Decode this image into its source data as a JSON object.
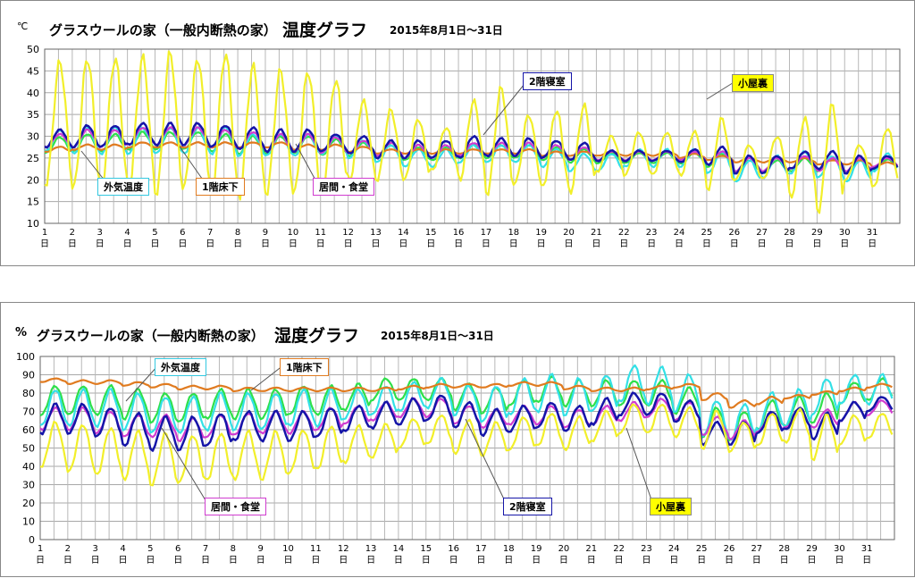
{
  "chart_data": [
    {
      "type": "line",
      "title": "グラスウールの家（一般内断熱の家）",
      "title_big": "温度グラフ",
      "subtitle": "2015年8月1日～31日",
      "unit": "℃",
      "ylim": [
        10,
        50
      ],
      "yticks": [
        10,
        15,
        20,
        25,
        30,
        35,
        40,
        45,
        50
      ],
      "xlim": [
        1,
        32
      ],
      "xticks": [
        "1",
        "2",
        "3",
        "4",
        "5",
        "6",
        "7",
        "8",
        "9",
        "10",
        "11",
        "12",
        "13",
        "14",
        "15",
        "16",
        "17",
        "18",
        "19",
        "20",
        "21",
        "22",
        "23",
        "24",
        "25",
        "26",
        "27",
        "28",
        "29",
        "30",
        "31"
      ],
      "xtick_suffix": "日",
      "grid": true,
      "series": [
        {
          "name": "外気温度",
          "color": "#33e0e6",
          "mean": [
            29,
            29,
            29,
            29,
            29,
            29,
            29,
            28,
            28,
            28,
            28,
            27,
            26,
            25,
            25,
            26,
            26,
            26,
            25,
            24,
            24,
            25,
            25,
            25,
            24,
            22,
            23,
            24,
            23,
            22,
            24
          ],
          "amp": [
            2.5,
            3,
            3,
            3,
            3,
            3,
            3,
            2.5,
            2.5,
            2.5,
            2,
            2,
            2,
            2,
            2,
            2,
            2,
            2,
            2,
            2,
            2,
            2,
            2,
            2,
            2.5,
            2.5,
            2.5,
            2.5,
            2.5,
            2.5,
            2
          ]
        },
        {
          "name": "1階床下",
          "color": "#e07b20",
          "mean": [
            27,
            27.5,
            27.5,
            28,
            28,
            28,
            28,
            28,
            28,
            27.5,
            27.5,
            27,
            26.5,
            26.5,
            26.5,
            26.5,
            26.5,
            26.5,
            26,
            26,
            26,
            26,
            26,
            25.5,
            25,
            24.5,
            24.5,
            24.5,
            24,
            24,
            23.5
          ],
          "amp": [
            0.6,
            0.6,
            0.6,
            0.6,
            0.6,
            0.6,
            0.6,
            0.6,
            0.6,
            0.6,
            0.6,
            0.6,
            0.5,
            0.5,
            0.5,
            0.5,
            0.5,
            0.5,
            0.5,
            0.5,
            0.5,
            0.5,
            0.5,
            0.5,
            0.5,
            0.5,
            0.5,
            0.5,
            0.5,
            0.5,
            0.5
          ]
        },
        {
          "name": "居間・食堂",
          "color": "#d03cd0",
          "mean": [
            29,
            29.5,
            29.5,
            30,
            30,
            30,
            29.5,
            29,
            28.5,
            28.5,
            28,
            27.5,
            27,
            26.5,
            26.5,
            27,
            27,
            27,
            26.5,
            26,
            25.5,
            25.5,
            25.5,
            25.5,
            25,
            23.5,
            23.5,
            24,
            23.5,
            23.5,
            24
          ],
          "amp": [
            1.5,
            2,
            2,
            2,
            2,
            2,
            2,
            2,
            2,
            2,
            1.8,
            1.5,
            1.5,
            1.5,
            1.5,
            1.5,
            1.5,
            1.5,
            1.5,
            1.5,
            1,
            1,
            1,
            1,
            1.5,
            1.5,
            1.5,
            1.5,
            1.5,
            1.5,
            1
          ]
        },
        {
          "name": "2階寝室",
          "color": "#1515a8",
          "mean": [
            29.5,
            30,
            30,
            30.5,
            30.5,
            30.5,
            30,
            29.5,
            29,
            29,
            28.5,
            28,
            27,
            27,
            27,
            27.5,
            27.5,
            27.5,
            27,
            26.5,
            25.5,
            25.5,
            25.5,
            25.5,
            25.5,
            23.5,
            23.5,
            24.5,
            24.5,
            23.5,
            24
          ],
          "amp": [
            2,
            2.5,
            2.5,
            2.5,
            2.5,
            2.5,
            2.5,
            2.5,
            2.5,
            2.5,
            2,
            2,
            2,
            2,
            2,
            2.5,
            2,
            2,
            2,
            2,
            1.2,
            1.2,
            1.2,
            1.5,
            2,
            2,
            2,
            2,
            2,
            2,
            1.5
          ]
        },
        {
          "name": "小屋裏",
          "color": "#f2ef2a",
          "mean": [
            33,
            33,
            33,
            33,
            33,
            33,
            33,
            31,
            31,
            31,
            30,
            29,
            28,
            27,
            27,
            29,
            29,
            27,
            27,
            27,
            26,
            26,
            26,
            26,
            26,
            24,
            25,
            25,
            25,
            24,
            25
          ],
          "amp": [
            14,
            15,
            15,
            15,
            16,
            15,
            16,
            15,
            14,
            14,
            13,
            9,
            8,
            7,
            5,
            9,
            12,
            8,
            9,
            10,
            4,
            5,
            5,
            5,
            8,
            4,
            5,
            9,
            12,
            4,
            7
          ]
        },
        {
          "name": "外気温度_g",
          "color": "#2ee04a",
          "mean": [
            28,
            28.5,
            28.5,
            29,
            29,
            29,
            28.5,
            28,
            28,
            28,
            27.5,
            27,
            26.5,
            26,
            26,
            26.5,
            26.5,
            26.5,
            26,
            25.5,
            25,
            25,
            25,
            25,
            24.5,
            23,
            23,
            23.5,
            23.5,
            23,
            23.5
          ],
          "amp": [
            1.8,
            2,
            2,
            2,
            2,
            2,
            2,
            2,
            2,
            2,
            1.8,
            1.5,
            1.5,
            1.5,
            1.5,
            1.5,
            1.5,
            1.5,
            1.5,
            1.5,
            1.2,
            1.2,
            1.2,
            1.2,
            1.5,
            1.5,
            1.5,
            1.5,
            1.5,
            1.5,
            1.2
          ]
        }
      ],
      "labels": {
        "outdoor": "外気温度",
        "floor": "1階床下",
        "living": "居間・食堂",
        "bedroom": "2階寝室",
        "attic": "小屋裏"
      }
    },
    {
      "type": "line",
      "title": "グラスウールの家（一般内断熱の家）",
      "title_big": "湿度グラフ",
      "subtitle": "2015年8月1日～31日",
      "unit": "%",
      "ylim": [
        0,
        100
      ],
      "yticks": [
        0,
        10,
        20,
        30,
        40,
        50,
        60,
        70,
        80,
        90,
        100
      ],
      "xlim": [
        1,
        32
      ],
      "xticks": [
        "1",
        "2",
        "3",
        "4",
        "5",
        "6",
        "7",
        "8",
        "9",
        "10",
        "11",
        "12",
        "13",
        "14",
        "15",
        "16",
        "17",
        "18",
        "19",
        "20",
        "21",
        "22",
        "23",
        "24",
        "25",
        "26",
        "27",
        "28",
        "29",
        "30",
        "31"
      ],
      "xtick_suffix": "日",
      "grid": true,
      "series": [
        {
          "name": "外気温度",
          "color": "#33e0e6",
          "mean": [
            72,
            72,
            72,
            70,
            68,
            68,
            70,
            70,
            70,
            72,
            72,
            74,
            76,
            78,
            80,
            76,
            74,
            78,
            80,
            78,
            80,
            85,
            84,
            80,
            66,
            64,
            70,
            72,
            78,
            82,
            82
          ],
          "amp": [
            10,
            10,
            10,
            10,
            10,
            10,
            10,
            10,
            10,
            10,
            10,
            8,
            8,
            8,
            8,
            8,
            10,
            10,
            10,
            10,
            10,
            10,
            10,
            10,
            10,
            10,
            10,
            10,
            10,
            8,
            8
          ]
        },
        {
          "name": "1階床下",
          "color": "#e07b20",
          "mean": [
            87,
            86,
            86,
            85,
            84,
            83,
            83,
            82,
            82,
            82,
            82,
            82,
            82,
            83,
            84,
            84,
            84,
            85,
            85,
            83,
            82,
            82,
            83,
            84,
            78,
            74,
            76,
            78,
            80,
            82,
            84
          ],
          "amp": [
            1,
            1,
            1,
            1,
            1,
            1,
            1,
            1,
            1,
            1,
            1,
            1,
            1,
            1,
            1,
            1,
            1,
            1,
            1,
            1,
            1,
            1,
            1,
            1,
            2,
            2,
            2,
            1,
            1,
            1,
            1
          ]
        },
        {
          "name": "居間・食堂",
          "color": "#d03cd0",
          "mean": [
            66,
            66,
            64,
            62,
            62,
            60,
            62,
            63,
            64,
            64,
            66,
            68,
            70,
            72,
            72,
            68,
            66,
            68,
            68,
            66,
            68,
            70,
            72,
            70,
            62,
            60,
            64,
            66,
            66,
            70,
            72
          ],
          "amp": [
            6,
            6,
            6,
            6,
            6,
            6,
            6,
            6,
            6,
            6,
            6,
            5,
            5,
            5,
            5,
            5,
            5,
            5,
            5,
            5,
            5,
            5,
            5,
            5,
            5,
            5,
            5,
            5,
            5,
            5,
            4
          ]
        },
        {
          "name": "2階寝室",
          "color": "#1515a8",
          "mean": [
            66,
            66,
            64,
            60,
            58,
            58,
            60,
            62,
            62,
            62,
            64,
            66,
            68,
            70,
            72,
            68,
            64,
            66,
            68,
            66,
            70,
            74,
            74,
            70,
            58,
            58,
            64,
            66,
            62,
            70,
            74
          ],
          "amp": [
            8,
            8,
            8,
            9,
            9,
            9,
            9,
            8,
            8,
            8,
            8,
            7,
            7,
            7,
            7,
            7,
            7,
            7,
            7,
            7,
            7,
            6,
            6,
            6,
            6,
            6,
            6,
            6,
            7,
            5,
            4
          ]
        },
        {
          "name": "小屋裏",
          "color": "#f2ef2a",
          "mean": [
            52,
            50,
            48,
            46,
            44,
            44,
            45,
            46,
            46,
            48,
            50,
            52,
            54,
            58,
            60,
            56,
            55,
            58,
            60,
            58,
            62,
            66,
            66,
            64,
            60,
            56,
            60,
            62,
            56,
            60,
            62
          ],
          "amp": [
            12,
            13,
            13,
            13,
            14,
            13,
            13,
            13,
            13,
            12,
            12,
            10,
            9,
            8,
            8,
            9,
            9,
            9,
            9,
            9,
            8,
            8,
            8,
            8,
            10,
            8,
            9,
            9,
            12,
            8,
            7
          ]
        },
        {
          "name": "外気温度_g",
          "color": "#2ee04a",
          "mean": [
            76,
            76,
            76,
            74,
            72,
            72,
            74,
            74,
            74,
            76,
            76,
            78,
            82,
            82,
            82,
            78,
            76,
            80,
            82,
            80,
            80,
            80,
            80,
            76,
            64,
            62,
            68,
            70,
            72,
            80,
            82
          ],
          "amp": [
            8,
            8,
            8,
            8,
            8,
            8,
            8,
            8,
            8,
            8,
            8,
            7,
            6,
            6,
            6,
            7,
            7,
            7,
            7,
            7,
            7,
            7,
            7,
            7,
            8,
            8,
            8,
            8,
            8,
            6,
            6
          ]
        }
      ],
      "labels": {
        "outdoor": "外気温度",
        "floor": "1階床下",
        "living": "居間・食堂",
        "bedroom": "2階寝室",
        "attic": "小屋裏"
      }
    }
  ]
}
